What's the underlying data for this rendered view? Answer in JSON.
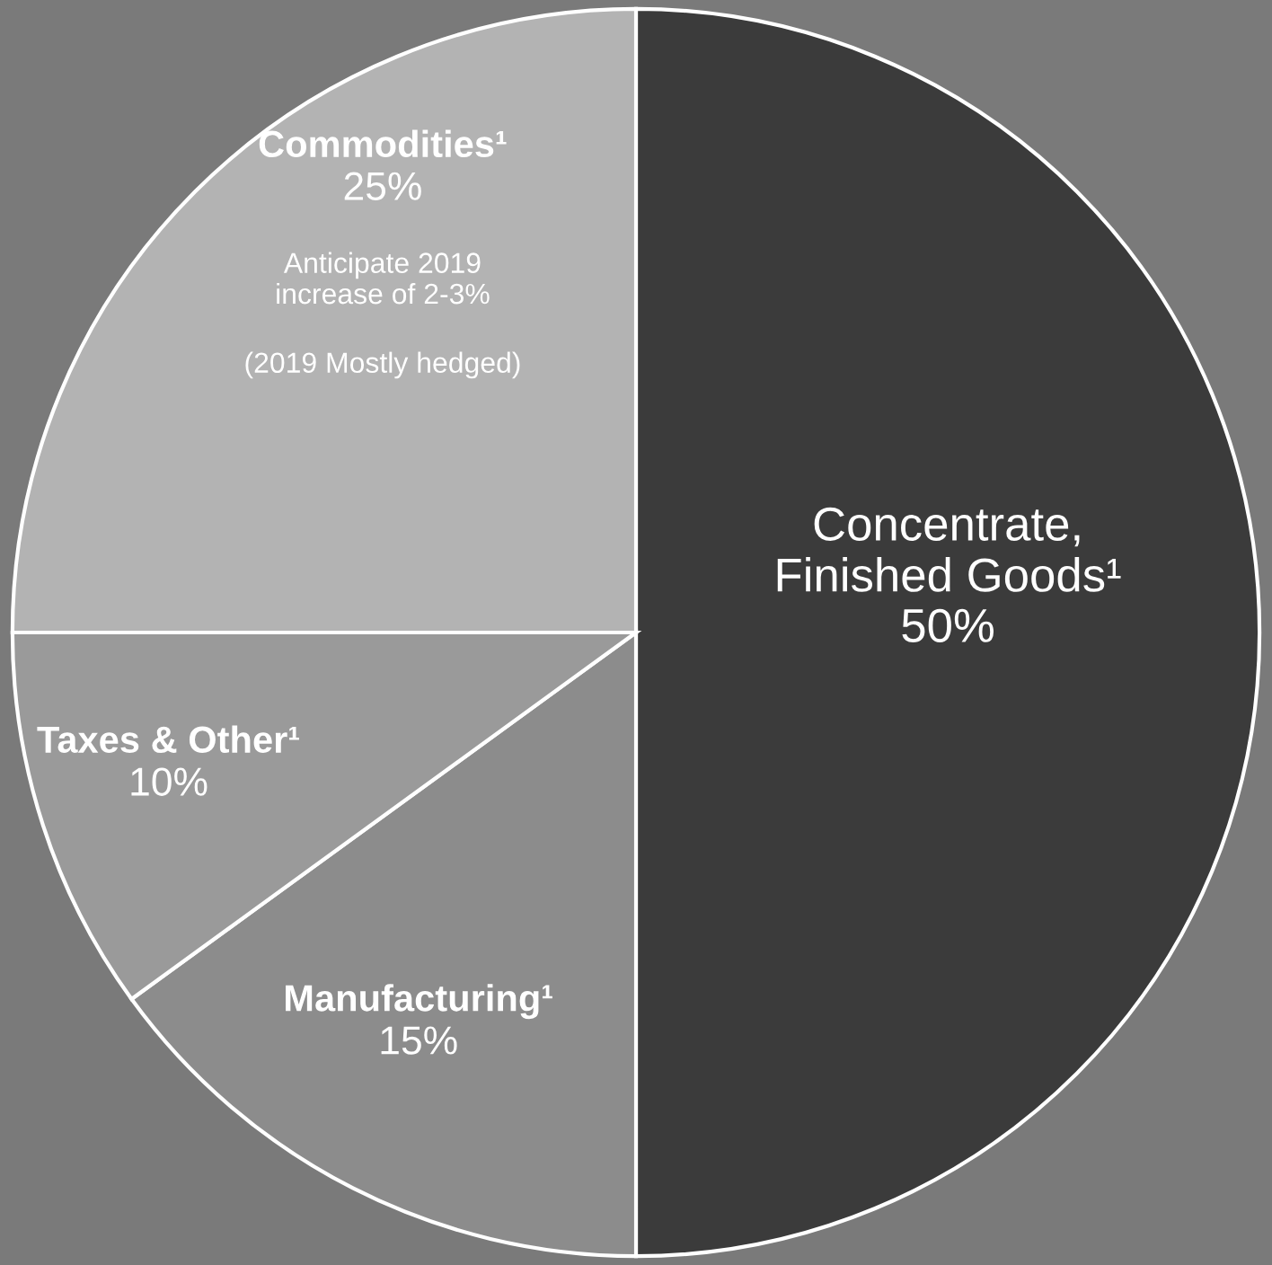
{
  "chart_data": {
    "type": "pie",
    "categories": [
      "Concentrate,\nFinished Goods¹",
      "Manufacturing¹",
      "Taxes & Other¹",
      "Commodities¹"
    ],
    "values": [
      50,
      15,
      10,
      25
    ],
    "value_labels": [
      "50%",
      "15%",
      "10%",
      "25%"
    ],
    "colors": [
      "#3b3b3b",
      "#8c8c8c",
      "#9a9a9a",
      "#b3b3b3"
    ],
    "annotations": [
      "Anticipate 2019\nincrease of 2-3%",
      "(2019 Mostly hedged)"
    ],
    "legend": false
  }
}
